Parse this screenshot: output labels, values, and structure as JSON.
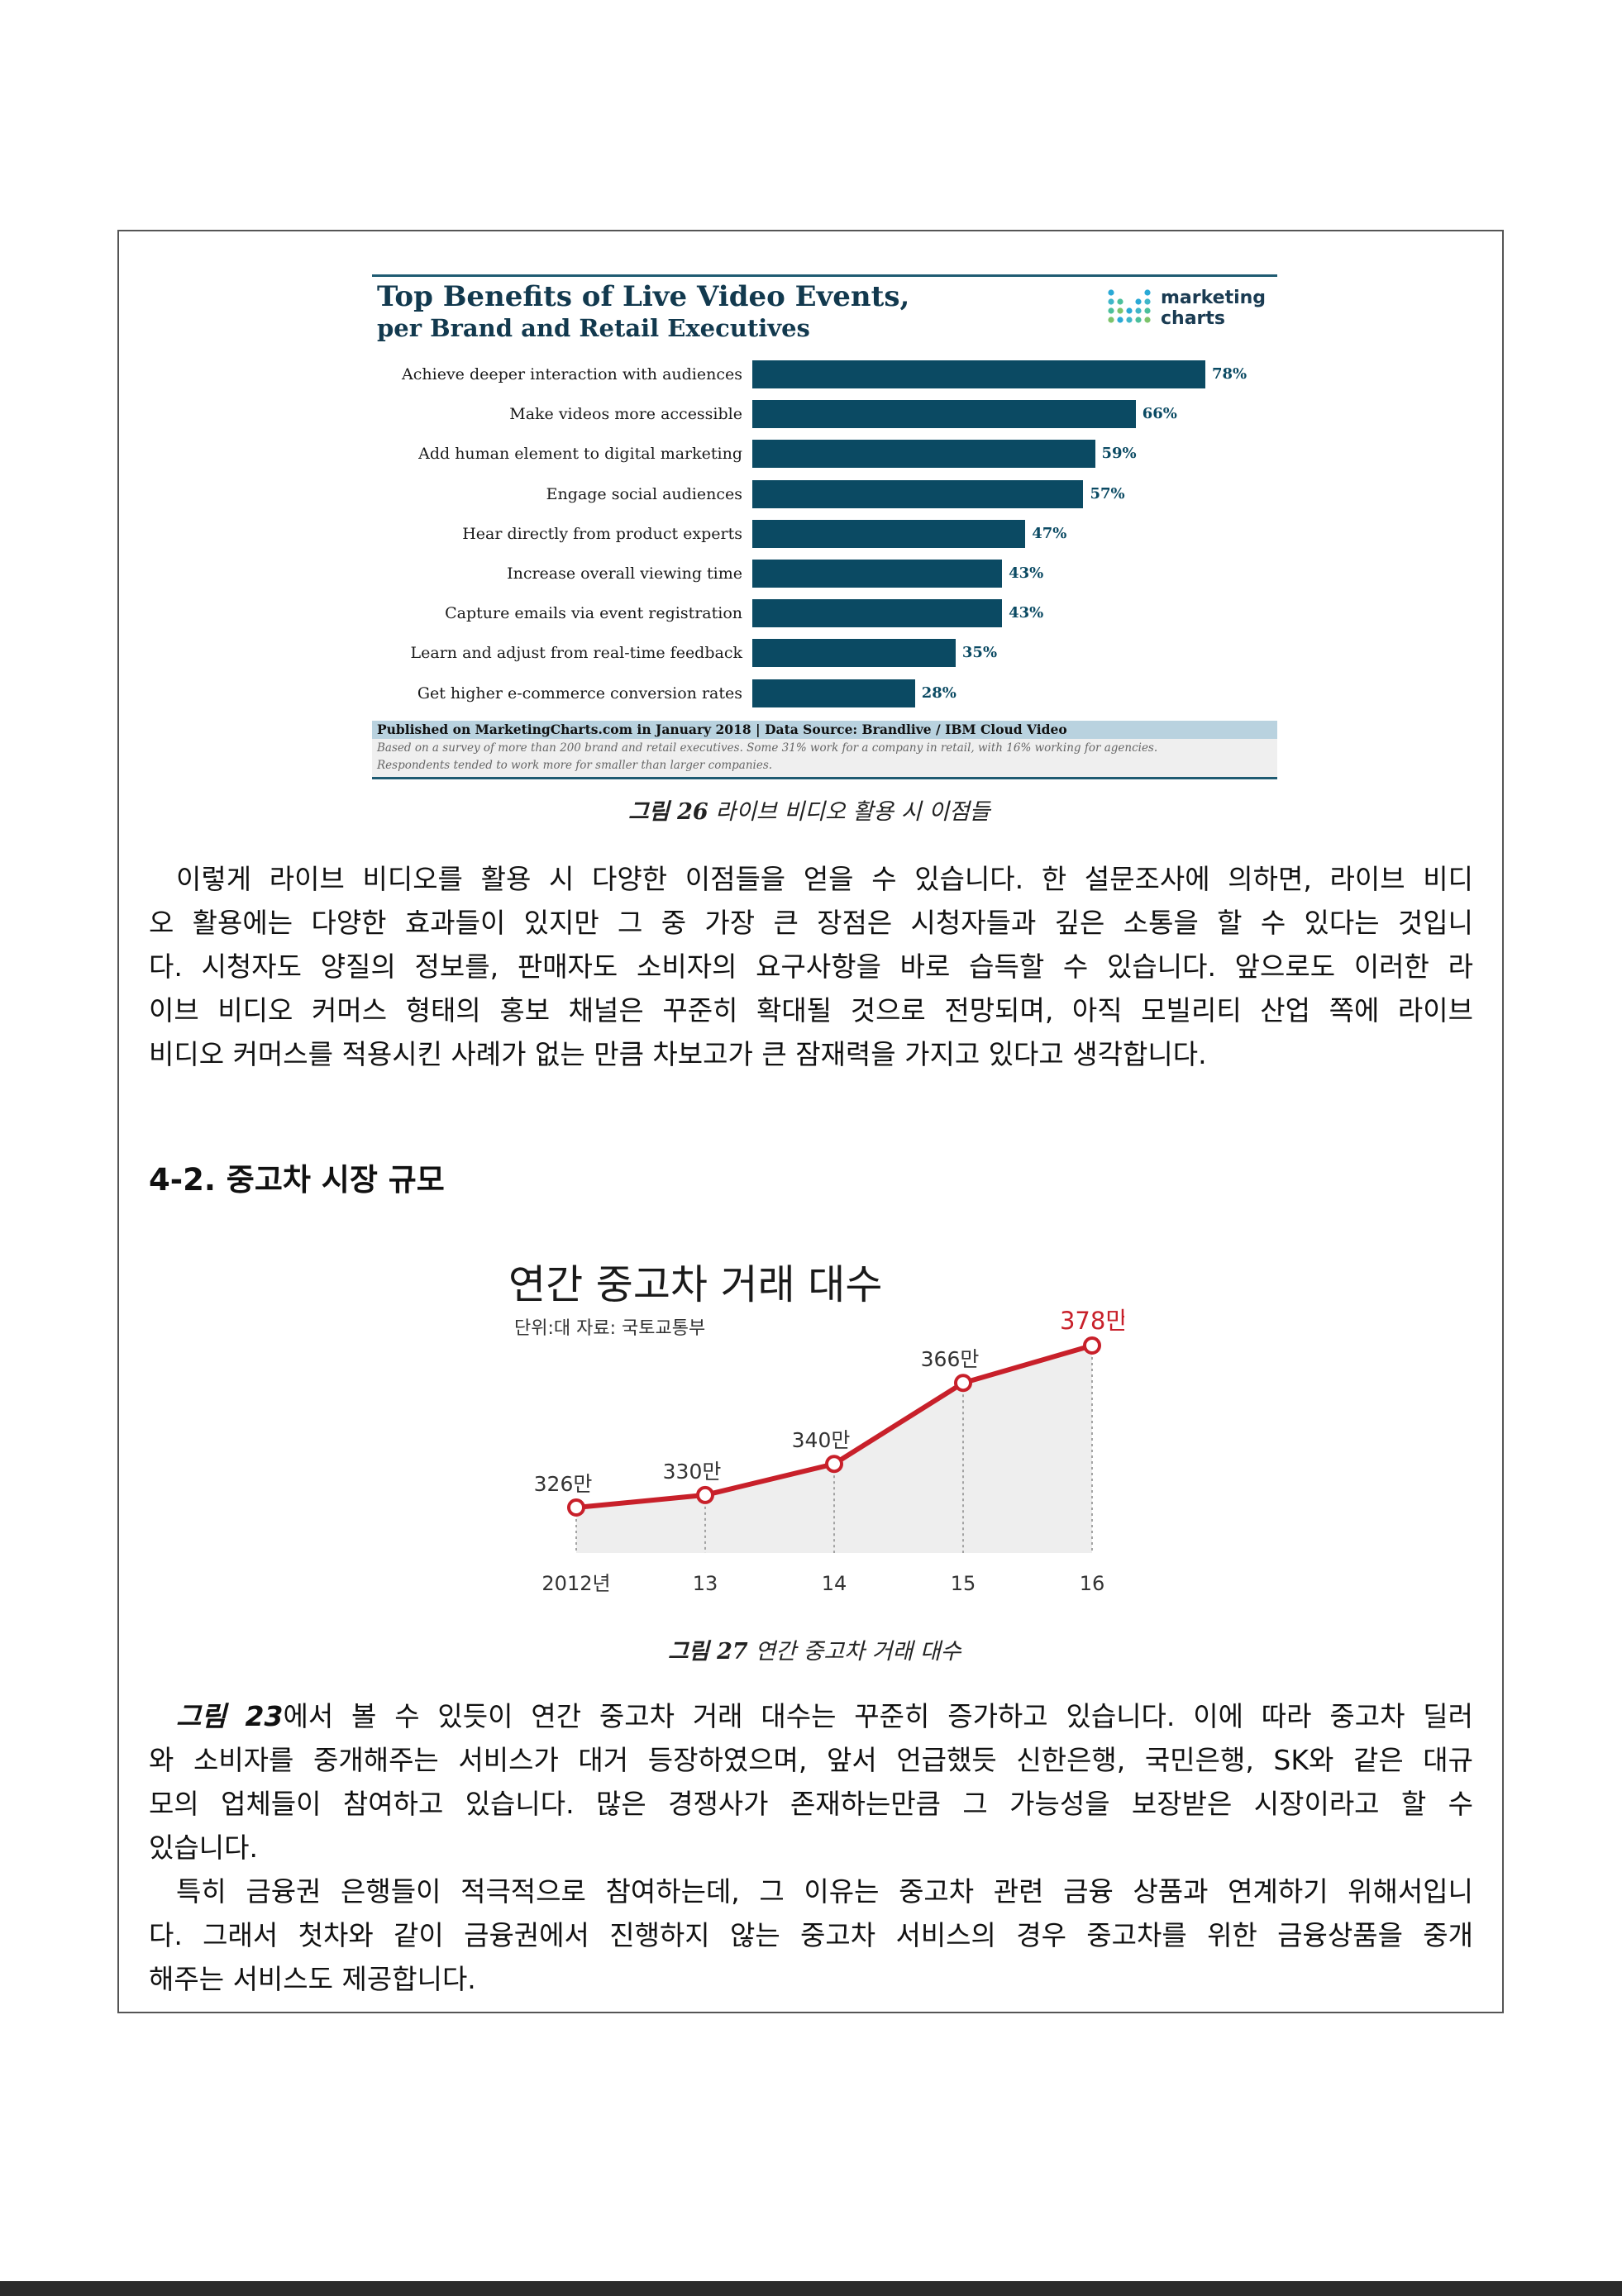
{
  "figure26": {
    "title": "Top Benefits of Live Video Events,",
    "subtitle": "per Brand and Retail Executives",
    "logo_text": "marketing\ncharts",
    "logo_icon": "dot-grid-logo-icon",
    "source": "Published on MarketingCharts.com in January 2018 | Data Source: Brandlive / IBM Cloud Video",
    "note_line1": "Based on a survey of more than 200 brand and retail executives. Some 31% work for a company in retail, with 16% working for agencies.",
    "note_line2": "Respondents tended to work more for smaller than larger companies.",
    "caption_num": "그림 26",
    "caption_text": " 라이브 비디오 활용 시 이점들"
  },
  "figure27": {
    "title": "연간 중고차 거래 대수",
    "unit_source": "단위:대   자료: 국토교통부",
    "caption_num": "그림 27",
    "caption_text": " 연간 중고차 거래 대수"
  },
  "chart_data": [
    {
      "type": "bar",
      "orientation": "horizontal",
      "title": "Top Benefits of Live Video Events,",
      "subtitle": "per Brand and Retail Executives",
      "categories": [
        "Achieve deeper interaction with audiences",
        "Make videos more accessible",
        "Add human element to digital marketing",
        "Engage social audiences",
        "Hear directly from product experts",
        "Increase overall viewing time",
        "Capture emails via event registration",
        "Learn and adjust from real-time feedback",
        "Get higher e-commerce conversion rates"
      ],
      "values": [
        78,
        66,
        59,
        57,
        47,
        43,
        43,
        35,
        28
      ],
      "value_labels": [
        "78%",
        "66%",
        "59%",
        "57%",
        "47%",
        "43%",
        "43%",
        "35%",
        "28%"
      ],
      "bar_color": "#0b4a63",
      "grid": false
    },
    {
      "type": "area",
      "title": "연간 중고차 거래 대수",
      "x": [
        "2012년",
        "13",
        "14",
        "15",
        "16"
      ],
      "values": [
        326,
        330,
        340,
        366,
        378
      ],
      "value_labels": [
        "326만",
        "330만",
        "340만",
        "366만",
        "378만"
      ],
      "line_color": "#c8202a",
      "fill_color": "#eeeeee",
      "highlight_last_label_color": "#c8202a",
      "grid": false
    }
  ],
  "body": {
    "para1_lines": [
      "이렇게 라이브 비디오를 활용 시 다양한 이점들을 얻을 수 있습니다. 한 설문조사에 의하면, 라이브 비디",
      "오 활용에는 다양한 효과들이 있지만 그 중 가장 큰 장점은 시청자들과 깊은 소통을 할 수 있다는 것입니",
      "다. 시청자도 양질의 정보를, 판매자도 소비자의 요구사항을 바로 습득할 수 있습니다. 앞으로도 이러한 라",
      "이브 비디오 커머스 형태의 홍보 채널은 꾸준히 확대될 것으로 전망되며, 아직 모빌리티 산업 쪽에 라이브",
      "비디오 커머스를 적용시킨 사례가 없는 만큼 차보고가 큰 잠재력을 가지고 있다고 생각합니다."
    ],
    "heading": "4-2. 중고차 시장 규모",
    "para2_ref": "그림 23",
    "para2_first_rest": "에서 볼 수 있듯이 연간 중고차 거래 대수는 꾸준히 증가하고 있습니다. 이에 따라 중고차 딜러",
    "para2_lines": [
      "와 소비자를 중개해주는 서비스가 대거 등장하였으며, 앞서 언급했듯 신한은행, 국민은행, SK와 같은 대규",
      "모의 업체들이 참여하고 있습니다. 많은 경쟁사가 존재하는만큼 그 가능성을 보장받은 시장이라고 할 수",
      "있습니다."
    ],
    "para3_lines": [
      "특히 금융권 은행들이 적극적으로 참여하는데, 그 이유는 중고차 관련 금융 상품과 연계하기 위해서입니",
      "다. 그래서 첫차와 같이 금융권에서 진행하지 않는 중고차 서비스의 경우 중고차를 위한 금융상품을 중개",
      "해주는 서비스도 제공합니다."
    ]
  }
}
